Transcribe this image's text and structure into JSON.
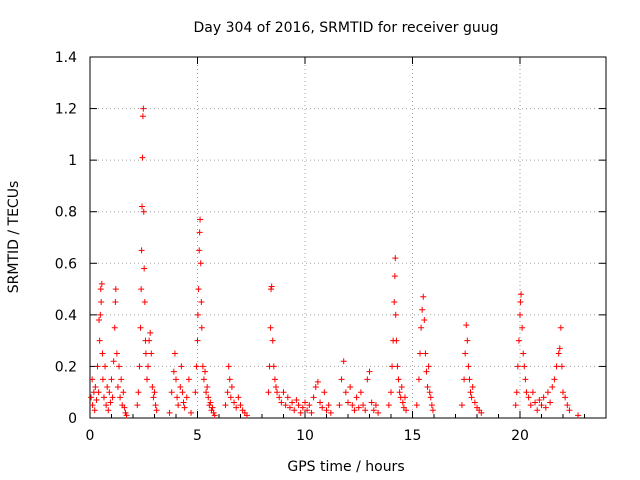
{
  "chart_data": {
    "type": "scatter",
    "title": "Day 304 of 2016, SRMTID for receiver guug",
    "xlabel": "GPS time / hours",
    "ylabel": "SRMTID / TECUs",
    "xlim": [
      0,
      24
    ],
    "ylim": [
      0,
      1.4
    ],
    "x_ticks": [
      0,
      5,
      10,
      15,
      20
    ],
    "y_ticks": [
      0,
      0.2,
      0.4,
      0.6,
      0.8,
      1,
      1.2,
      1.4
    ],
    "x_tick_labels": [
      "0",
      "5",
      "10",
      "15",
      "20"
    ],
    "y_tick_labels": [
      "0",
      "0.2",
      "0.4",
      "0.6",
      "0.8",
      "1",
      "1.2",
      "1.4"
    ],
    "grid": true,
    "marker": "+",
    "color": "#ff0000",
    "series": [
      {
        "points": [
          [
            0.05,
            0.08
          ],
          [
            0.1,
            0.15
          ],
          [
            0.12,
            0.05
          ],
          [
            0.18,
            0.1
          ],
          [
            0.22,
            0.03
          ],
          [
            0.25,
            0.12
          ],
          [
            0.3,
            0.07
          ],
          [
            0.35,
            0.2
          ],
          [
            0.4,
            0.1
          ],
          [
            0.42,
            0.38
          ],
          [
            0.45,
            0.3
          ],
          [
            0.48,
            0.4
          ],
          [
            0.5,
            0.5
          ],
          [
            0.52,
            0.45
          ],
          [
            0.55,
            0.52
          ],
          [
            0.58,
            0.25
          ],
          [
            0.6,
            0.15
          ],
          [
            0.65,
            0.08
          ],
          [
            0.7,
            0.2
          ],
          [
            0.75,
            0.05
          ],
          [
            0.8,
            0.12
          ],
          [
            0.85,
            0.03
          ],
          [
            0.9,
            0.1
          ],
          [
            0.95,
            0.06
          ],
          [
            1.0,
            0.15
          ],
          [
            1.05,
            0.08
          ],
          [
            1.1,
            0.22
          ],
          [
            1.15,
            0.35
          ],
          [
            1.18,
            0.45
          ],
          [
            1.2,
            0.5
          ],
          [
            1.25,
            0.25
          ],
          [
            1.3,
            0.12
          ],
          [
            1.35,
            0.2
          ],
          [
            1.4,
            0.08
          ],
          [
            1.45,
            0.15
          ],
          [
            1.5,
            0.05
          ],
          [
            1.55,
            0.1
          ],
          [
            1.6,
            0.04
          ],
          [
            1.65,
            0.02
          ],
          [
            1.7,
            0.01
          ],
          [
            2.2,
            0.05
          ],
          [
            2.25,
            0.1
          ],
          [
            2.3,
            0.2
          ],
          [
            2.35,
            0.35
          ],
          [
            2.38,
            0.5
          ],
          [
            2.4,
            0.65
          ],
          [
            2.42,
            0.82
          ],
          [
            2.44,
            1.01
          ],
          [
            2.46,
            1.17
          ],
          [
            2.48,
            1.2
          ],
          [
            2.5,
            0.8
          ],
          [
            2.52,
            0.58
          ],
          [
            2.55,
            0.45
          ],
          [
            2.58,
            0.3
          ],
          [
            2.6,
            0.25
          ],
          [
            2.65,
            0.15
          ],
          [
            2.7,
            0.2
          ],
          [
            2.75,
            0.3
          ],
          [
            2.8,
            0.33
          ],
          [
            2.85,
            0.25
          ],
          [
            2.9,
            0.12
          ],
          [
            2.95,
            0.08
          ],
          [
            3.0,
            0.1
          ],
          [
            3.05,
            0.05
          ],
          [
            3.1,
            0.03
          ],
          [
            3.7,
            0.02
          ],
          [
            3.8,
            0.1
          ],
          [
            3.9,
            0.18
          ],
          [
            3.95,
            0.25
          ],
          [
            4.0,
            0.15
          ],
          [
            4.05,
            0.08
          ],
          [
            4.1,
            0.05
          ],
          [
            4.2,
            0.12
          ],
          [
            4.25,
            0.2
          ],
          [
            4.3,
            0.1
          ],
          [
            4.35,
            0.06
          ],
          [
            4.4,
            0.04
          ],
          [
            4.5,
            0.08
          ],
          [
            4.6,
            0.15
          ],
          [
            4.7,
            0.02
          ],
          [
            4.9,
            0.1
          ],
          [
            4.95,
            0.2
          ],
          [
            5.0,
            0.3
          ],
          [
            5.02,
            0.4
          ],
          [
            5.05,
            0.5
          ],
          [
            5.08,
            0.65
          ],
          [
            5.1,
            0.72
          ],
          [
            5.12,
            0.77
          ],
          [
            5.15,
            0.6
          ],
          [
            5.18,
            0.45
          ],
          [
            5.2,
            0.35
          ],
          [
            5.25,
            0.2
          ],
          [
            5.3,
            0.15
          ],
          [
            5.35,
            0.18
          ],
          [
            5.4,
            0.1
          ],
          [
            5.45,
            0.12
          ],
          [
            5.5,
            0.08
          ],
          [
            5.55,
            0.05
          ],
          [
            5.6,
            0.06
          ],
          [
            5.65,
            0.03
          ],
          [
            5.7,
            0.04
          ],
          [
            5.75,
            0.02
          ],
          [
            5.8,
            0.01
          ],
          [
            6.3,
            0.05
          ],
          [
            6.4,
            0.1
          ],
          [
            6.45,
            0.2
          ],
          [
            6.5,
            0.15
          ],
          [
            6.55,
            0.08
          ],
          [
            6.6,
            0.12
          ],
          [
            6.7,
            0.06
          ],
          [
            6.8,
            0.04
          ],
          [
            6.9,
            0.08
          ],
          [
            7.0,
            0.05
          ],
          [
            7.1,
            0.03
          ],
          [
            7.2,
            0.02
          ],
          [
            7.3,
            0.01
          ],
          [
            8.3,
            0.1
          ],
          [
            8.35,
            0.2
          ],
          [
            8.4,
            0.35
          ],
          [
            8.42,
            0.5
          ],
          [
            8.45,
            0.51
          ],
          [
            8.5,
            0.3
          ],
          [
            8.55,
            0.2
          ],
          [
            8.6,
            0.15
          ],
          [
            8.65,
            0.12
          ],
          [
            8.7,
            0.1
          ],
          [
            8.8,
            0.08
          ],
          [
            8.9,
            0.06
          ],
          [
            9.0,
            0.1
          ],
          [
            9.1,
            0.05
          ],
          [
            9.2,
            0.08
          ],
          [
            9.3,
            0.04
          ],
          [
            9.4,
            0.06
          ],
          [
            9.5,
            0.03
          ],
          [
            9.6,
            0.07
          ],
          [
            9.7,
            0.05
          ],
          [
            9.8,
            0.02
          ],
          [
            9.9,
            0.04
          ],
          [
            10.0,
            0.06
          ],
          [
            10.1,
            0.03
          ],
          [
            10.2,
            0.05
          ],
          [
            10.3,
            0.02
          ],
          [
            10.4,
            0.08
          ],
          [
            10.5,
            0.12
          ],
          [
            10.6,
            0.14
          ],
          [
            10.7,
            0.06
          ],
          [
            10.8,
            0.04
          ],
          [
            10.9,
            0.1
          ],
          [
            11.0,
            0.03
          ],
          [
            11.1,
            0.05
          ],
          [
            11.2,
            0.02
          ],
          [
            11.6,
            0.05
          ],
          [
            11.7,
            0.15
          ],
          [
            11.8,
            0.22
          ],
          [
            11.9,
            0.1
          ],
          [
            12.0,
            0.06
          ],
          [
            12.1,
            0.12
          ],
          [
            12.2,
            0.05
          ],
          [
            12.3,
            0.03
          ],
          [
            12.4,
            0.08
          ],
          [
            12.5,
            0.04
          ],
          [
            12.6,
            0.1
          ],
          [
            12.7,
            0.05
          ],
          [
            12.8,
            0.03
          ],
          [
            12.9,
            0.15
          ],
          [
            13.0,
            0.18
          ],
          [
            13.1,
            0.06
          ],
          [
            13.2,
            0.03
          ],
          [
            13.3,
            0.05
          ],
          [
            13.4,
            0.02
          ],
          [
            13.9,
            0.05
          ],
          [
            14.0,
            0.1
          ],
          [
            14.05,
            0.2
          ],
          [
            14.1,
            0.3
          ],
          [
            14.15,
            0.45
          ],
          [
            14.18,
            0.55
          ],
          [
            14.2,
            0.62
          ],
          [
            14.22,
            0.4
          ],
          [
            14.25,
            0.3
          ],
          [
            14.3,
            0.2
          ],
          [
            14.35,
            0.15
          ],
          [
            14.4,
            0.1
          ],
          [
            14.45,
            0.08
          ],
          [
            14.5,
            0.12
          ],
          [
            14.55,
            0.06
          ],
          [
            14.6,
            0.04
          ],
          [
            14.65,
            0.08
          ],
          [
            14.7,
            0.03
          ],
          [
            15.2,
            0.05
          ],
          [
            15.3,
            0.15
          ],
          [
            15.35,
            0.25
          ],
          [
            15.4,
            0.35
          ],
          [
            15.45,
            0.42
          ],
          [
            15.5,
            0.47
          ],
          [
            15.55,
            0.38
          ],
          [
            15.6,
            0.25
          ],
          [
            15.65,
            0.18
          ],
          [
            15.7,
            0.12
          ],
          [
            15.75,
            0.2
          ],
          [
            15.8,
            0.1
          ],
          [
            15.85,
            0.08
          ],
          [
            15.9,
            0.05
          ],
          [
            15.95,
            0.03
          ],
          [
            17.3,
            0.05
          ],
          [
            17.4,
            0.15
          ],
          [
            17.45,
            0.25
          ],
          [
            17.5,
            0.36
          ],
          [
            17.55,
            0.3
          ],
          [
            17.6,
            0.2
          ],
          [
            17.65,
            0.15
          ],
          [
            17.7,
            0.1
          ],
          [
            17.75,
            0.08
          ],
          [
            17.8,
            0.12
          ],
          [
            17.9,
            0.06
          ],
          [
            18.0,
            0.04
          ],
          [
            18.1,
            0.03
          ],
          [
            18.2,
            0.02
          ],
          [
            19.8,
            0.05
          ],
          [
            19.85,
            0.1
          ],
          [
            19.9,
            0.2
          ],
          [
            19.95,
            0.3
          ],
          [
            20.0,
            0.4
          ],
          [
            20.02,
            0.45
          ],
          [
            20.05,
            0.48
          ],
          [
            20.1,
            0.35
          ],
          [
            20.15,
            0.25
          ],
          [
            20.2,
            0.2
          ],
          [
            20.25,
            0.15
          ],
          [
            20.3,
            0.1
          ],
          [
            20.4,
            0.08
          ],
          [
            20.5,
            0.05
          ],
          [
            20.6,
            0.1
          ],
          [
            20.7,
            0.06
          ],
          [
            20.8,
            0.03
          ],
          [
            20.9,
            0.07
          ],
          [
            21.0,
            0.05
          ],
          [
            21.1,
            0.08
          ],
          [
            21.2,
            0.04
          ],
          [
            21.3,
            0.1
          ],
          [
            21.4,
            0.06
          ],
          [
            21.5,
            0.12
          ],
          [
            21.6,
            0.15
          ],
          [
            21.7,
            0.2
          ],
          [
            21.8,
            0.25
          ],
          [
            21.85,
            0.27
          ],
          [
            21.9,
            0.35
          ],
          [
            21.95,
            0.2
          ],
          [
            22.0,
            0.1
          ],
          [
            22.1,
            0.08
          ],
          [
            22.2,
            0.05
          ],
          [
            22.3,
            0.03
          ],
          [
            22.7,
            0.01
          ]
        ]
      }
    ]
  }
}
